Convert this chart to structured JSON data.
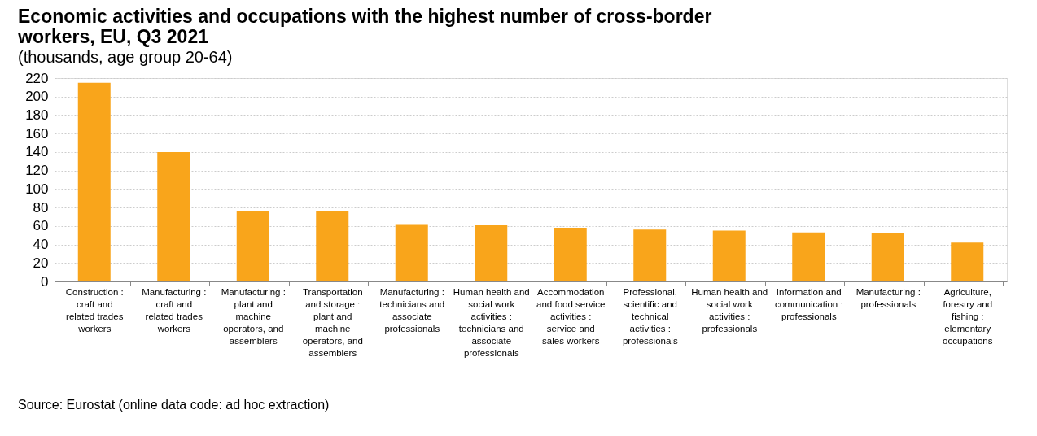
{
  "chart_data": {
    "type": "bar",
    "title": "Economic activities and occupations with the highest number of cross-border workers, EU, Q3 2021",
    "subtitle": "(thousands, age group 20-64)",
    "categories": [
      "Construction : craft and related trades workers",
      "Manufacturing : craft and related trades workers",
      "Manufacturing : plant and machine operators, and assemblers",
      "Transportation and storage : plant and machine operators, and assemblers",
      "Manufacturing : technicians and associate professionals",
      "Human health and social work activities : technicians and associate professionals",
      "Accommodation and food service activities : service and sales workers",
      "Professional, scientific and technical activities : professionals",
      "Human health and social work activities : professionals",
      "Information and communication : professionals",
      "Manufacturing : professionals",
      "Agriculture, forestry and fishing : elementary occupations"
    ],
    "values": [
      215,
      140,
      76,
      76,
      62,
      61,
      58,
      56,
      55,
      53,
      52,
      42
    ],
    "color": "#f9a51b",
    "ylim": [
      0,
      220
    ],
    "yticks": [
      0,
      20,
      40,
      60,
      80,
      100,
      120,
      140,
      160,
      180,
      200,
      220
    ],
    "grid": "y",
    "annotations": [
      "Source: Eurostat (online data code: ad hoc extraction)"
    ]
  }
}
